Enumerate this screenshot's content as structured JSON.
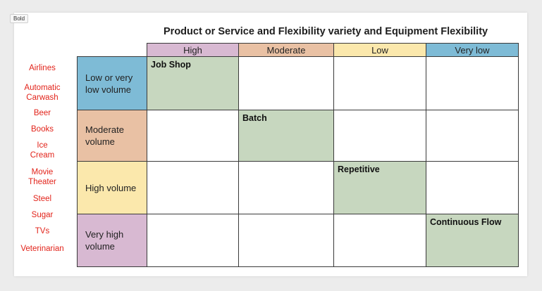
{
  "badge": "Bold",
  "title": "Product or Service and Flexibility variety and Equipment Flexibility",
  "examples": [
    "Airlines",
    "Automatic Carwash",
    "Beer",
    "Books",
    "Ice Cream",
    "Movie Theater",
    "Steel",
    "Sugar",
    "TVs",
    "Veterinarian"
  ],
  "columns": [
    {
      "label": "High",
      "color": "#d8b9d2"
    },
    {
      "label": "Moderate",
      "color": "#e9c1a4"
    },
    {
      "label": "Low",
      "color": "#fbe8ac"
    },
    {
      "label": "Very low",
      "color": "#7ebbd6"
    }
  ],
  "rows": [
    {
      "label": "Low or very low volume",
      "color": "#7ebbd6"
    },
    {
      "label": "Moderate volume",
      "color": "#e9c1a4"
    },
    {
      "label": "High volume",
      "color": "#fbe8ac"
    },
    {
      "label": "Very high volume",
      "color": "#d8b9d2"
    }
  ],
  "processes": [
    "Job Shop",
    "Batch",
    "Repetitive",
    "Continuous Flow"
  ],
  "fill_color": "#c7d7bf"
}
